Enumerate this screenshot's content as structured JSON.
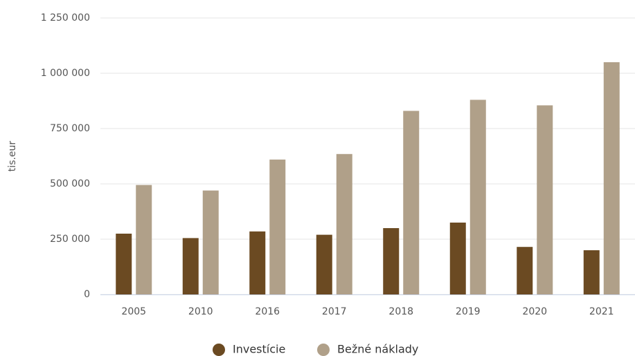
{
  "chart_data": {
    "type": "bar",
    "y_label": "tis.eur",
    "categories": [
      "2005",
      "2010",
      "2016",
      "2017",
      "2018",
      "2019",
      "2020",
      "2021"
    ],
    "series": [
      {
        "name": "Investície",
        "color": "#6b4a22",
        "values": [
          275000,
          255000,
          285000,
          270000,
          300000,
          325000,
          215000,
          200000
        ]
      },
      {
        "name": "Bežné náklady",
        "color": "#b0a089",
        "values": [
          495000,
          470000,
          610000,
          635000,
          830000,
          880000,
          855000,
          1050000
        ]
      }
    ],
    "ylim": [
      0,
      1250000
    ],
    "yticks": [
      0,
      {
        "value": 250000,
        "label": "250 000"
      },
      {
        "value": 500000,
        "label": "500 000"
      },
      {
        "value": 750000,
        "label": "750 000"
      },
      {
        "value": 1000000,
        "label": "1 000 000"
      },
      {
        "value": 1250000,
        "label": "1 250 000"
      }
    ],
    "grid": true,
    "legend": "bottom"
  }
}
